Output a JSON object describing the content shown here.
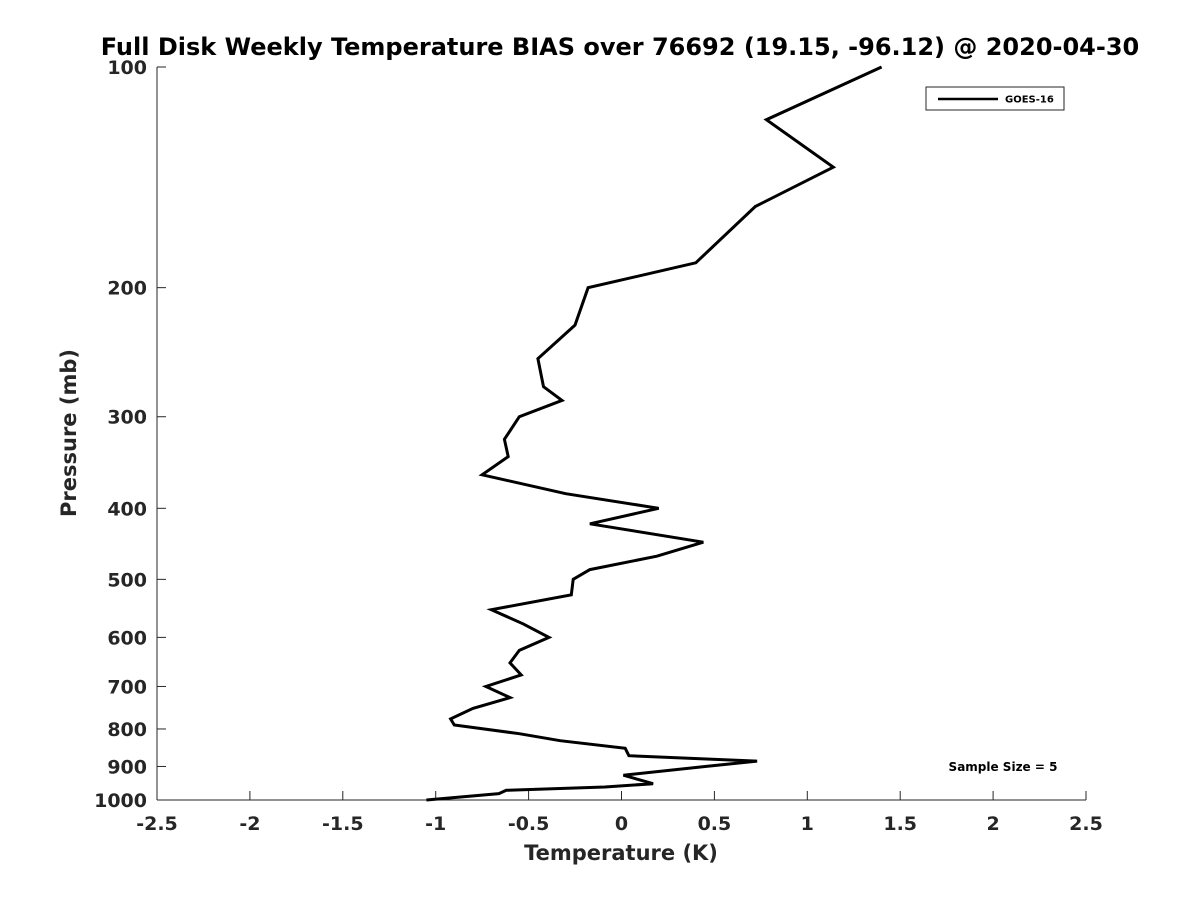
{
  "chart_data": {
    "type": "line",
    "title": "Full Disk Weekly Temperature BIAS over 76692 (19.15, -96.12) @ 2020-04-30",
    "xlabel": "Temperature (K)",
    "ylabel": "Pressure (mb)",
    "xlim": [
      -2.5,
      2.5
    ],
    "ylim": [
      1000,
      100
    ],
    "yscale": "log",
    "x_ticks": [
      -2.5,
      -2,
      -1.5,
      -1,
      -0.5,
      0,
      0.5,
      1,
      1.5,
      2,
      2.5
    ],
    "x_tick_labels": [
      "-2.5",
      "-2",
      "-1.5",
      "-1",
      "-0.5",
      "0",
      "0.5",
      "1",
      "1.5",
      "2",
      "2.5"
    ],
    "y_ticks": [
      100,
      200,
      300,
      400,
      500,
      600,
      700,
      800,
      900,
      1000
    ],
    "y_tick_labels": [
      "100",
      "200",
      "300",
      "400",
      "500",
      "600",
      "700",
      "800",
      "900",
      "1000"
    ],
    "grid": false,
    "legend_position": "top-right",
    "series": [
      {
        "name": "GOES-16",
        "color": "#000000",
        "points": [
          {
            "x": 1.4,
            "y": 100
          },
          {
            "x": 0.78,
            "y": 118
          },
          {
            "x": 1.14,
            "y": 137
          },
          {
            "x": 0.72,
            "y": 155
          },
          {
            "x": 0.4,
            "y": 185
          },
          {
            "x": -0.18,
            "y": 200
          },
          {
            "x": -0.25,
            "y": 225
          },
          {
            "x": -0.45,
            "y": 250
          },
          {
            "x": -0.42,
            "y": 273
          },
          {
            "x": -0.32,
            "y": 285
          },
          {
            "x": -0.55,
            "y": 300
          },
          {
            "x": -0.63,
            "y": 322
          },
          {
            "x": -0.61,
            "y": 340
          },
          {
            "x": -0.75,
            "y": 360
          },
          {
            "x": -0.3,
            "y": 382
          },
          {
            "x": 0.2,
            "y": 400
          },
          {
            "x": -0.17,
            "y": 420
          },
          {
            "x": 0.44,
            "y": 445
          },
          {
            "x": 0.19,
            "y": 465
          },
          {
            "x": -0.17,
            "y": 485
          },
          {
            "x": -0.26,
            "y": 500
          },
          {
            "x": -0.27,
            "y": 525
          },
          {
            "x": -0.7,
            "y": 550
          },
          {
            "x": -0.53,
            "y": 575
          },
          {
            "x": -0.39,
            "y": 600
          },
          {
            "x": -0.55,
            "y": 625
          },
          {
            "x": -0.6,
            "y": 650
          },
          {
            "x": -0.54,
            "y": 675
          },
          {
            "x": -0.73,
            "y": 700
          },
          {
            "x": -0.6,
            "y": 725
          },
          {
            "x": -0.8,
            "y": 750
          },
          {
            "x": -0.92,
            "y": 775
          },
          {
            "x": -0.9,
            "y": 790
          },
          {
            "x": -0.55,
            "y": 812
          },
          {
            "x": -0.33,
            "y": 830
          },
          {
            "x": 0.02,
            "y": 850
          },
          {
            "x": 0.04,
            "y": 870
          },
          {
            "x": 0.73,
            "y": 885
          },
          {
            "x": 0.45,
            "y": 900
          },
          {
            "x": 0.01,
            "y": 925
          },
          {
            "x": 0.17,
            "y": 950
          },
          {
            "x": -0.09,
            "y": 960
          },
          {
            "x": -0.62,
            "y": 970
          },
          {
            "x": -0.66,
            "y": 980
          },
          {
            "x": -1.05,
            "y": 1000
          }
        ]
      }
    ],
    "annotations": [
      {
        "text": "Sample Size = 5"
      }
    ]
  }
}
